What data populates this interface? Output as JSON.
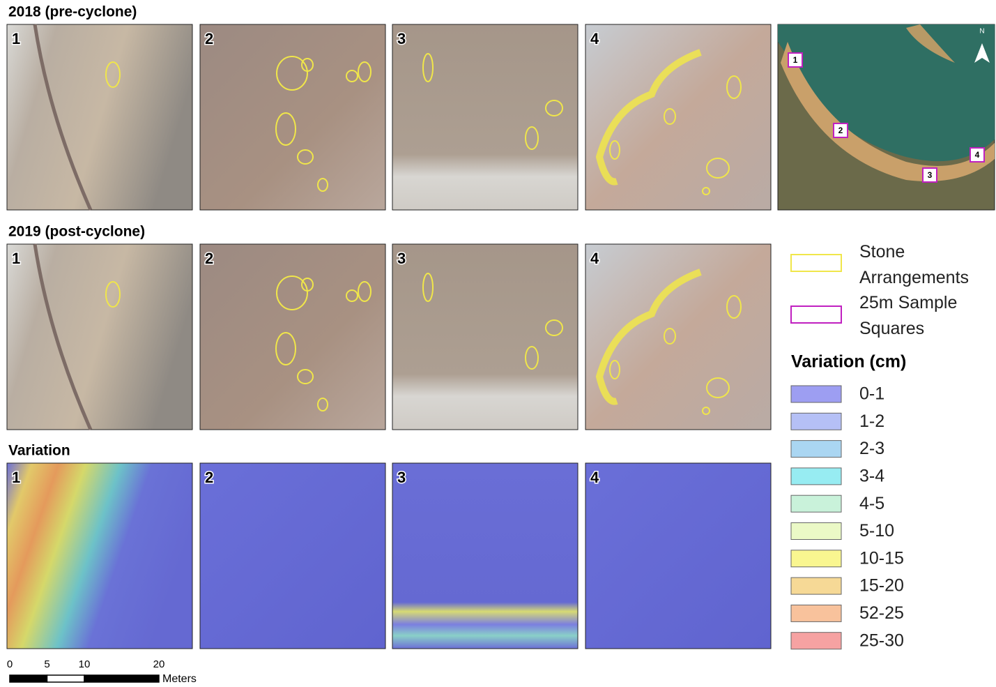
{
  "rows": [
    {
      "title": "2018 (pre-cyclone)",
      "panels": [
        "1",
        "2",
        "3",
        "4"
      ]
    },
    {
      "title": "2019 (post-cyclone)",
      "panels": [
        "1",
        "2",
        "3",
        "4"
      ]
    },
    {
      "title": "Variation",
      "panels": [
        "1",
        "2",
        "3",
        "4"
      ]
    }
  ],
  "location_map": {
    "north": "N",
    "squares": [
      "1",
      "2",
      "3",
      "4"
    ]
  },
  "legend": {
    "items": [
      "Stone Arrangements",
      "25m Sample Squares"
    ],
    "variation_title": "Variation (cm)",
    "classes": [
      {
        "label": "0-1",
        "color": "#9d9ef2"
      },
      {
        "label": "1-2",
        "color": "#b5c0f6"
      },
      {
        "label": "2-3",
        "color": "#aad6f2"
      },
      {
        "label": "3-4",
        "color": "#97ecf2"
      },
      {
        "label": "4-5",
        "color": "#c9f2da"
      },
      {
        "label": "5-10",
        "color": "#ebf9c6"
      },
      {
        "label": "10-15",
        "color": "#f9f690"
      },
      {
        "label": "15-20",
        "color": "#f6d996"
      },
      {
        "label": "52-25",
        "color": "#f8c29c"
      },
      {
        "label": "25-30",
        "color": "#f6a2a2"
      }
    ]
  },
  "scale_bar": {
    "ticks": [
      0,
      5,
      10,
      20
    ],
    "unit": "Meters"
  }
}
